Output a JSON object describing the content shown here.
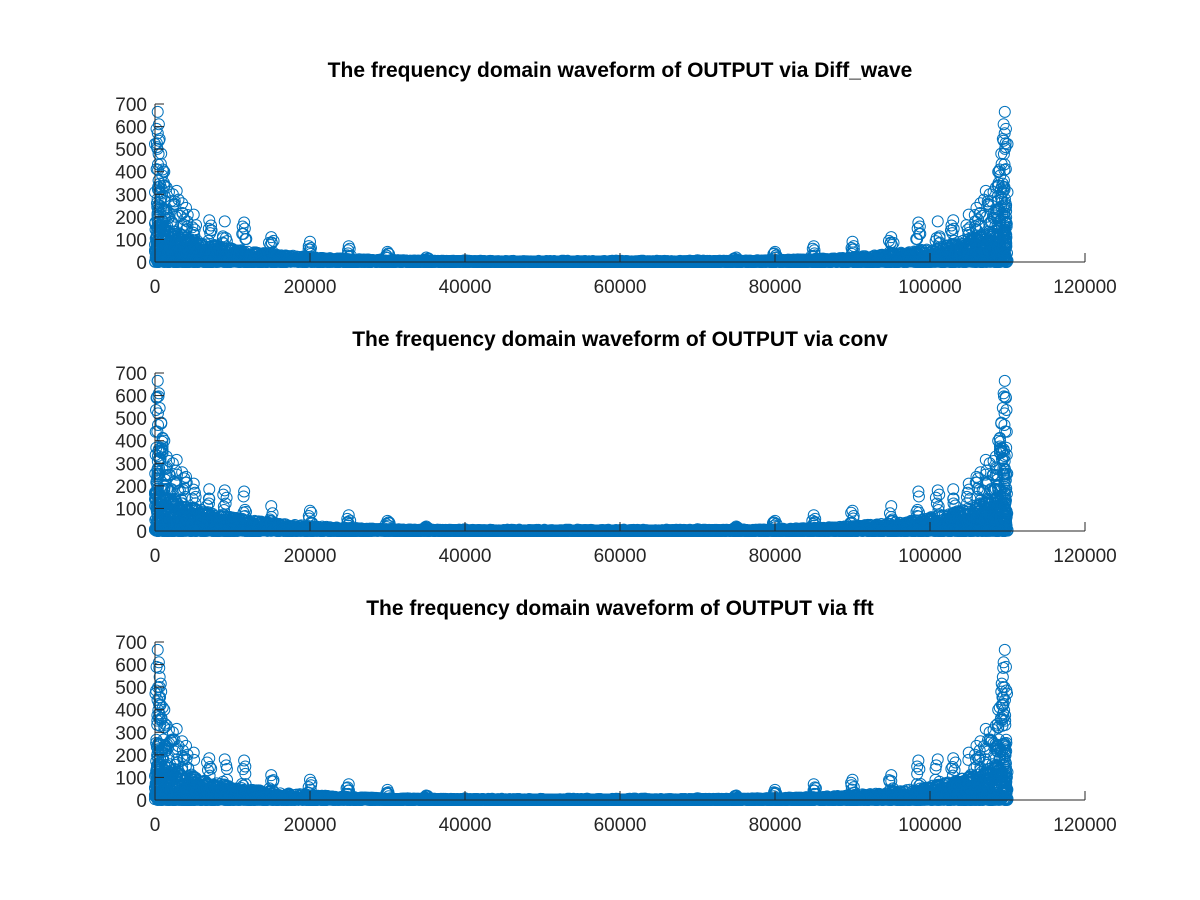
{
  "chart_data": [
    {
      "type": "scatter",
      "title": "The frequency domain waveform of OUTPUT via Diff_wave",
      "xlabel": "",
      "ylabel": "",
      "xlim": [
        0,
        120000
      ],
      "ylim": [
        0,
        700
      ],
      "xticks": [
        0,
        20000,
        40000,
        60000,
        80000,
        100000,
        120000
      ],
      "yticks": [
        0,
        100,
        200,
        300,
        400,
        500,
        600,
        700
      ],
      "xticklabels": [
        "0",
        "20000",
        "40000",
        "60000",
        "80000",
        "100000",
        "120000"
      ],
      "yticklabels": [
        "0",
        "100",
        "200",
        "300",
        "400",
        "500",
        "600",
        "700"
      ],
      "marker": "circle",
      "grid": false,
      "color": "#0072BD",
      "n_points": 110000,
      "symmetric": true,
      "peaks": [
        [
          200,
          590
        ],
        [
          350,
          665
        ],
        [
          500,
          610
        ],
        [
          600,
          545
        ],
        [
          800,
          480
        ],
        [
          1000,
          410
        ],
        [
          1200,
          400
        ],
        [
          1500,
          330
        ],
        [
          1800,
          310
        ],
        [
          2300,
          300
        ],
        [
          2800,
          315
        ],
        [
          3500,
          260
        ],
        [
          4000,
          240
        ],
        [
          5000,
          210
        ],
        [
          7000,
          185
        ],
        [
          9000,
          180
        ],
        [
          11500,
          175
        ],
        [
          15000,
          110
        ],
        [
          20000,
          90
        ],
        [
          25000,
          70
        ],
        [
          30000,
          45
        ],
        [
          35000,
          20
        ],
        [
          40000,
          8
        ],
        [
          55000,
          3
        ]
      ]
    },
    {
      "type": "scatter",
      "title": "The frequency domain waveform of OUTPUT via conv",
      "xlabel": "",
      "ylabel": "",
      "xlim": [
        0,
        120000
      ],
      "ylim": [
        0,
        700
      ],
      "xticks": [
        0,
        20000,
        40000,
        60000,
        80000,
        100000,
        120000
      ],
      "yticks": [
        0,
        100,
        200,
        300,
        400,
        500,
        600,
        700
      ],
      "xticklabels": [
        "0",
        "20000",
        "40000",
        "60000",
        "80000",
        "100000",
        "120000"
      ],
      "yticklabels": [
        "0",
        "100",
        "200",
        "300",
        "400",
        "500",
        "600",
        "700"
      ],
      "marker": "circle",
      "grid": false,
      "color": "#0072BD",
      "n_points": 110000,
      "symmetric": true,
      "peaks": [
        [
          200,
          590
        ],
        [
          350,
          665
        ],
        [
          500,
          610
        ],
        [
          600,
          545
        ],
        [
          800,
          480
        ],
        [
          1000,
          410
        ],
        [
          1200,
          400
        ],
        [
          1500,
          330
        ],
        [
          1800,
          310
        ],
        [
          2300,
          300
        ],
        [
          2800,
          315
        ],
        [
          3500,
          260
        ],
        [
          4000,
          240
        ],
        [
          5000,
          210
        ],
        [
          7000,
          185
        ],
        [
          9000,
          180
        ],
        [
          11500,
          175
        ],
        [
          15000,
          110
        ],
        [
          20000,
          90
        ],
        [
          25000,
          70
        ],
        [
          30000,
          45
        ],
        [
          35000,
          20
        ],
        [
          40000,
          8
        ],
        [
          55000,
          3
        ]
      ]
    },
    {
      "type": "scatter",
      "title": "The frequency domain waveform of OUTPUT via fft",
      "xlabel": "",
      "ylabel": "",
      "xlim": [
        0,
        120000
      ],
      "ylim": [
        0,
        700
      ],
      "xticks": [
        0,
        20000,
        40000,
        60000,
        80000,
        100000,
        120000
      ],
      "yticks": [
        0,
        100,
        200,
        300,
        400,
        500,
        600,
        700
      ],
      "xticklabels": [
        "0",
        "20000",
        "40000",
        "60000",
        "80000",
        "100000",
        "120000"
      ],
      "yticklabels": [
        "0",
        "100",
        "200",
        "300",
        "400",
        "500",
        "600",
        "700"
      ],
      "marker": "circle",
      "grid": false,
      "color": "#0072BD",
      "n_points": 110000,
      "symmetric": true,
      "peaks": [
        [
          200,
          590
        ],
        [
          350,
          665
        ],
        [
          500,
          610
        ],
        [
          600,
          545
        ],
        [
          800,
          480
        ],
        [
          1000,
          410
        ],
        [
          1200,
          400
        ],
        [
          1500,
          330
        ],
        [
          1800,
          310
        ],
        [
          2300,
          300
        ],
        [
          2800,
          315
        ],
        [
          3500,
          260
        ],
        [
          4000,
          240
        ],
        [
          5000,
          210
        ],
        [
          7000,
          185
        ],
        [
          9000,
          180
        ],
        [
          11500,
          175
        ],
        [
          15000,
          110
        ],
        [
          20000,
          90
        ],
        [
          25000,
          70
        ],
        [
          30000,
          45
        ],
        [
          35000,
          20
        ],
        [
          40000,
          8
        ],
        [
          55000,
          3
        ]
      ]
    }
  ]
}
